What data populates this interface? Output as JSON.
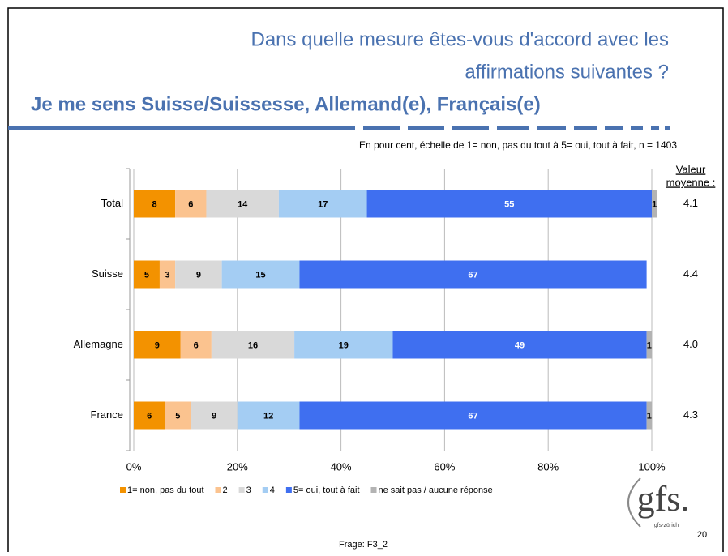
{
  "chart_data": {
    "type": "stacked_barh",
    "title_lines": [
      "Dans quelle mesure êtes-vous d'accord avec les",
      "affirmations suivantes ?"
    ],
    "subtitle": "Je me sens Suisse/Suissesse, Allemand(e), Français(e)",
    "note": "En pour cent, échelle de 1= non, pas du tout à 5= oui, tout à fait, n = 1403",
    "categories": [
      "Total",
      "Suisse",
      "Allemagne",
      "France"
    ],
    "series": [
      {
        "name": "1= non, pas du tout",
        "color": "#f39200",
        "values": [
          8,
          5,
          9,
          6
        ]
      },
      {
        "name": "2",
        "color": "#fbc38f",
        "values": [
          6,
          3,
          6,
          5
        ]
      },
      {
        "name": "3",
        "color": "#d9d9d9",
        "values": [
          14,
          9,
          16,
          9
        ]
      },
      {
        "name": "4",
        "color": "#a4cdf3",
        "values": [
          17,
          15,
          19,
          12
        ]
      },
      {
        "name": "5= oui, tout à fait",
        "color": "#3f6ff0",
        "values": [
          55,
          67,
          49,
          67
        ]
      },
      {
        "name": "ne sait pas / aucune réponse",
        "color": "#b3b3b3",
        "values": [
          1,
          null,
          1,
          1
        ]
      }
    ],
    "xlim": [
      0,
      100
    ],
    "xticks": [
      {
        "value": 0,
        "label": "0%"
      },
      {
        "value": 20,
        "label": "20%"
      },
      {
        "value": 40,
        "label": "40%"
      },
      {
        "value": 60,
        "label": "60%"
      },
      {
        "value": 80,
        "label": "80%"
      },
      {
        "value": 100,
        "label": "100%"
      }
    ],
    "mean_header": [
      "Valeur",
      "moyenne :"
    ],
    "means": [
      4.1,
      4.4,
      4.0,
      4.3
    ],
    "means_labels": [
      "4.1",
      "4.4",
      "4.0",
      "4.3"
    ],
    "grid": true
  },
  "footer": {
    "source": "Frage: F3_2",
    "page": "20",
    "logo": "gfs.",
    "logo_sub": "gfs-zürich"
  }
}
